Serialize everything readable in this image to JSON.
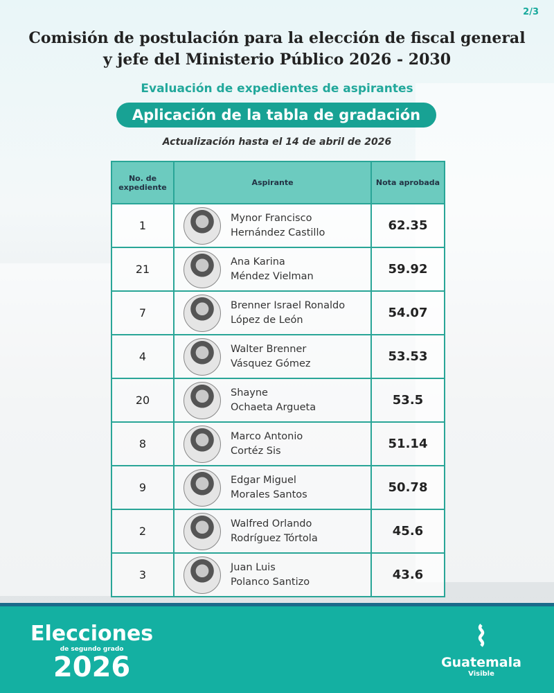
{
  "page_indicator": "2/3",
  "title_line1": "Comisión de postulación para la elección de fiscal general",
  "title_line2": "y jefe del Ministerio Público 2026 - 2030",
  "subtitle": "Evaluación de expedientes de aspirantes",
  "pill_title": "Aplicación de la tabla de gradación",
  "update_note": "Actualización hasta el 14 de abril de 2026",
  "table": {
    "headers": [
      "No. de expediente",
      "Aspirante",
      "Nota aprobada"
    ],
    "rows": [
      {
        "no": "1",
        "name1": "Mynor Francisco",
        "name2": "Hernández Castillo",
        "nota": "62.35"
      },
      {
        "no": "21",
        "name1": "Ana Karina",
        "name2": "Méndez Vielman",
        "nota": "59.92"
      },
      {
        "no": "7",
        "name1": "Brenner Israel Ronaldo",
        "name2": "López de León",
        "nota": "54.07"
      },
      {
        "no": "4",
        "name1": "Walter Brenner",
        "name2": "Vásquez Gómez",
        "nota": "53.53"
      },
      {
        "no": "20",
        "name1": "Shayne",
        "name2": "Ochaeta Argueta",
        "nota": "53.5"
      },
      {
        "no": "8",
        "name1": "Marco Antonio",
        "name2": "Cortéz Sis",
        "nota": "51.14"
      },
      {
        "no": "9",
        "name1": "Edgar Miguel",
        "name2": "Morales Santos",
        "nota": "50.78"
      },
      {
        "no": "2",
        "name1": "Walfred Orlando",
        "name2": "Rodríguez Tórtola",
        "nota": "45.6"
      },
      {
        "no": "3",
        "name1": "Juan Luis",
        "name2": "Polanco Santizo",
        "nota": "43.6"
      }
    ]
  },
  "footer": {
    "elecciones": "Elecciones",
    "segundo_grado": "de segundo grado",
    "year": "2026",
    "brand": "Guatemala",
    "brand_sub": "Visible"
  },
  "colors": {
    "accent": "#18a294",
    "footer": "#14b0a2",
    "header_cell": "#6ccbbf"
  }
}
